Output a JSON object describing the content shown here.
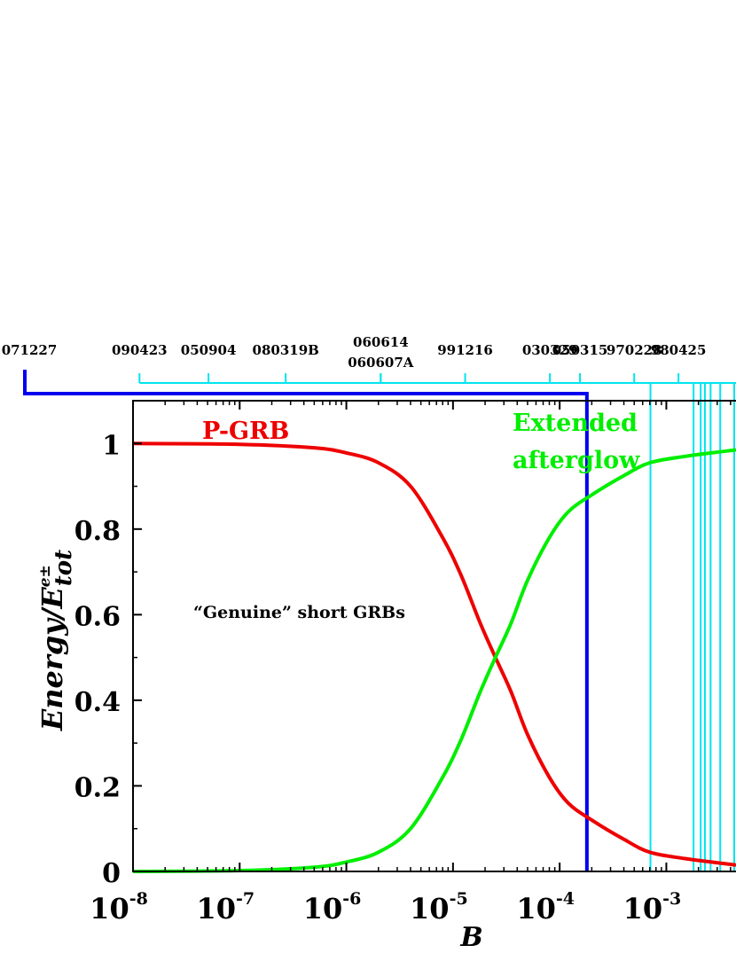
{
  "chart_data": {
    "type": "line",
    "xlabel": "B",
    "ylabel_main": "Energy/E",
    "ylabel_sup": "e±",
    "ylabel_sub": "tot",
    "xscale": "log",
    "xlim": [
      1e-08,
      0.0045
    ],
    "ylim": [
      0,
      1.1
    ],
    "xticks": [
      {
        "value": 1e-08,
        "label": "8"
      },
      {
        "value": 1e-07,
        "label": "7"
      },
      {
        "value": 1e-06,
        "label": "6"
      },
      {
        "value": 1e-05,
        "label": "5"
      },
      {
        "value": 0.0001,
        "label": "4"
      },
      {
        "value": 0.001,
        "label": "3"
      }
    ],
    "xtick_base": "10",
    "xtick_sign": "-",
    "yticks": [
      {
        "value": 0,
        "label": "0"
      },
      {
        "value": 0.2,
        "label": "0.2"
      },
      {
        "value": 0.4,
        "label": "0.4"
      },
      {
        "value": 0.6,
        "label": "0.6"
      },
      {
        "value": 0.8,
        "label": "0.8"
      },
      {
        "value": 1,
        "label": "1"
      }
    ],
    "series": [
      {
        "name": "P-GRB",
        "color": "#ee0000",
        "x": [
          1e-08,
          1e-07,
          5e-07,
          1e-06,
          2e-06,
          4e-06,
          8e-06,
          1.2e-05,
          1.8e-05,
          2.5e-05,
          3.5e-05,
          5e-05,
          8e-05,
          0.00012,
          0.0002,
          0.0004,
          0.0007,
          0.0015,
          0.0045
        ],
        "y": [
          1.0,
          0.998,
          0.99,
          0.978,
          0.955,
          0.9,
          0.78,
          0.69,
          0.58,
          0.5,
          0.42,
          0.32,
          0.22,
          0.16,
          0.12,
          0.075,
          0.045,
          0.03,
          0.015
        ]
      },
      {
        "name": "Extended afterglow",
        "color": "#00ee00",
        "x": [
          1e-08,
          1e-07,
          5e-07,
          1e-06,
          2e-06,
          4e-06,
          8e-06,
          1.2e-05,
          1.8e-05,
          2.5e-05,
          3.5e-05,
          5e-05,
          8e-05,
          0.00012,
          0.0002,
          0.0004,
          0.0007,
          0.0015,
          0.0045
        ],
        "y": [
          0.0,
          0.002,
          0.01,
          0.022,
          0.045,
          0.1,
          0.22,
          0.31,
          0.42,
          0.5,
          0.58,
          0.68,
          0.78,
          0.84,
          0.88,
          0.925,
          0.955,
          0.97,
          0.985
        ]
      }
    ],
    "series_labels": [
      "P-GRB",
      "Extended",
      "afterglow"
    ],
    "annotations": [
      "“Genuine” short GRBs"
    ],
    "short_grb_boundary_B": 0.00018,
    "short_grb_color": "#0000ee",
    "grb_line_color": "#00e5ee",
    "grbs_top": [
      {
        "name": "071227",
        "B": 1e-08
      },
      {
        "name": "090423",
        "B": 1.15e-08
      },
      {
        "name": "050904",
        "B": 5.1e-08
      },
      {
        "name": "080319B",
        "B": 2.7e-07
      },
      {
        "name": "060614",
        "B": 2.1e-06
      },
      {
        "name": "060607A",
        "B": 2.1e-06
      },
      {
        "name": "991216",
        "B": 1.3e-05
      },
      {
        "name": "030329",
        "B": 8.1e-05
      },
      {
        "name": "050315",
        "B": 0.000155
      },
      {
        "name": "970228",
        "B": 0.0005
      },
      {
        "name": "980425",
        "B": 0.0013
      }
    ],
    "grbs_vertical_B": [
      0.00071,
      0.0018,
      0.0021,
      0.0023,
      0.0026,
      0.0032,
      0.0045
    ]
  }
}
